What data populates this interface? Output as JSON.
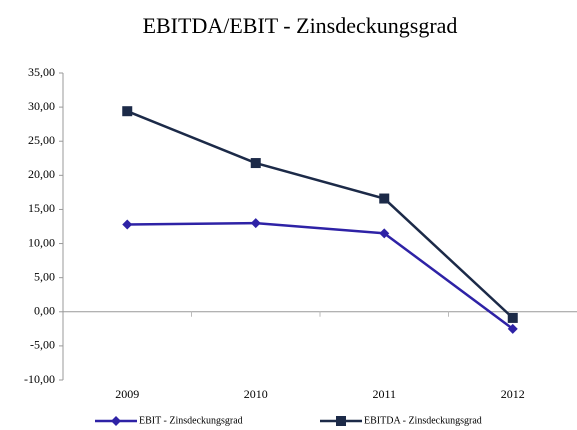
{
  "chart_data": {
    "type": "line",
    "title": "EBITDA/EBIT - Zinsdeckungsgrad",
    "categories": [
      "2009",
      "2010",
      "2011",
      "2012"
    ],
    "series": [
      {
        "name": "EBIT - Zinsdeckungsgrad",
        "color": "#2e22a6",
        "marker": "diamond",
        "values": [
          12.8,
          13.0,
          11.5,
          -2.5
        ]
      },
      {
        "name": "EBITDA - Zinsdeckungsgrad",
        "color": "#1c2a48",
        "marker": "square",
        "values": [
          29.4,
          21.8,
          16.6,
          -0.9
        ]
      }
    ],
    "ylim": [
      -10,
      35
    ],
    "yticks": [
      {
        "value": -10,
        "label": "-10,00"
      },
      {
        "value": -5,
        "label": "-5,00"
      },
      {
        "value": 0,
        "label": "0,00"
      },
      {
        "value": 5,
        "label": "5,00"
      },
      {
        "value": 10,
        "label": "10,00"
      },
      {
        "value": 15,
        "label": "15,00"
      },
      {
        "value": 20,
        "label": "20,00"
      },
      {
        "value": 25,
        "label": "25,00"
      },
      {
        "value": 30,
        "label": "30,00"
      },
      {
        "value": 35,
        "label": "35,00"
      }
    ],
    "grid": false,
    "legend": "bottom"
  }
}
